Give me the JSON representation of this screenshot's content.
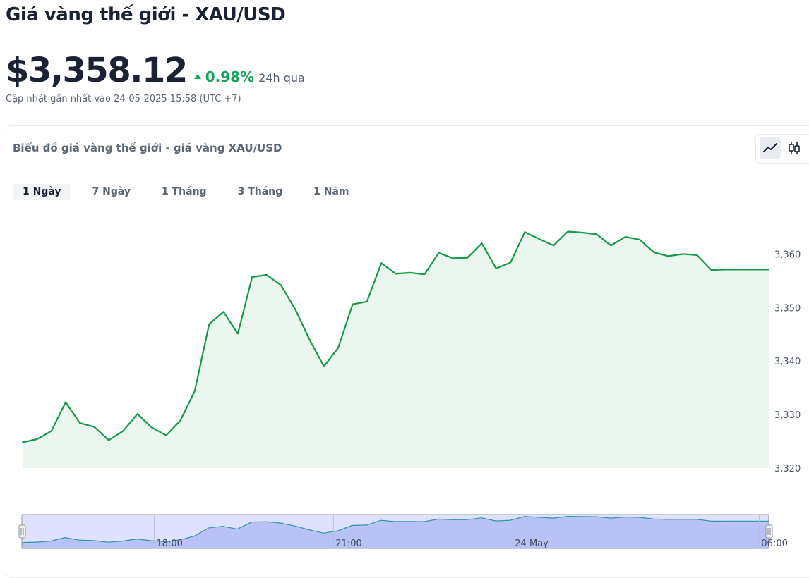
{
  "page": {
    "title": "Giá vàng thế giới - XAU/USD",
    "price": "$3,358.12",
    "change_pct": "0.98%",
    "change_period": "24h qua",
    "updated": "Cập nhật gần nhất vào 24-05-2025 15:58 (UTC +7)"
  },
  "chart_card": {
    "title": "Biểu đồ giá vàng thế giới - giá vàng XAU/USD",
    "view_modes": [
      {
        "label": "line",
        "icon": "line-chart-icon",
        "active": true
      },
      {
        "label": "candlestick",
        "icon": "candlestick-icon",
        "active": false
      }
    ],
    "range_tabs": [
      {
        "label": "1 Ngày",
        "active": true
      },
      {
        "label": "7 Ngày",
        "active": false
      },
      {
        "label": "1 Tháng",
        "active": false
      },
      {
        "label": "3 Tháng",
        "active": false
      },
      {
        "label": "1 Năm",
        "active": false
      }
    ]
  },
  "colors": {
    "accent_up": "#15a55a",
    "line": "#169a4a",
    "area_fill": "#ebf6ef",
    "navigator_fill": "#cdd8f4",
    "navigator_mask": "rgba(110,120,255,0.22)"
  },
  "chart_data": {
    "type": "area",
    "title": "",
    "xlabel": "",
    "ylabel": "",
    "ylim": [
      3320,
      3364
    ],
    "y_ticks": [
      "3,320",
      "3,330",
      "3,340",
      "3,350",
      "3,360"
    ],
    "y_tick_values": [
      3320,
      3330,
      3340,
      3350,
      3360
    ],
    "grid": false,
    "legend": "none",
    "series": [
      {
        "values": [
          3324.8,
          3325.4,
          3326.9,
          3332.3,
          3328.4,
          3327.7,
          3325.2,
          3326.9,
          3330.1,
          3327.6,
          3326.1,
          3328.9,
          3334.4,
          3346.9,
          3349.2,
          3345.1,
          3355.7,
          3356.1,
          3354.2,
          3349.7,
          3344.0,
          3339.0,
          3342.5,
          3350.6,
          3351.1,
          3358.3,
          3356.3,
          3356.5,
          3356.2,
          3360.2,
          3359.2,
          3359.3,
          3362.0,
          3357.3,
          3358.4,
          3364.1,
          3362.8,
          3361.6,
          3364.2,
          3364.0,
          3363.7,
          3361.6,
          3363.2,
          3362.7,
          3360.3,
          3359.6,
          3360.0,
          3359.8,
          3357.0,
          3357.1,
          3357.1,
          3357.1,
          3357.1
        ]
      }
    ],
    "navigator": {
      "x_labels": [
        "18:00",
        "21:00",
        "24 May",
        "06:00"
      ],
      "x_label_positions_fraction": [
        0.18,
        0.42,
        0.66,
        0.99
      ]
    }
  }
}
